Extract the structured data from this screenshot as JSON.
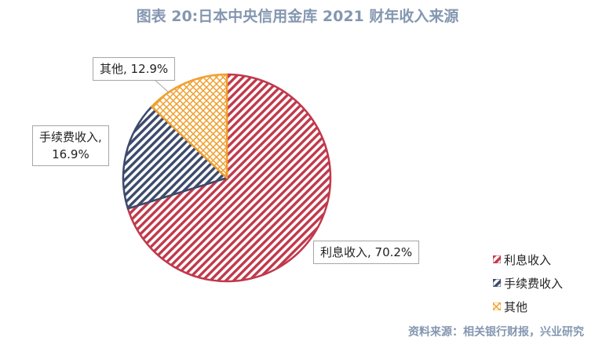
{
  "chart_data": {
    "type": "pie",
    "title": "图表 20:日本中央信用金库 2021 财年收入来源",
    "slices": [
      {
        "name": "利息收入",
        "value": 70.2,
        "label": "利息收入, 70.2%",
        "color": "#c0394b",
        "pattern": "diagonal-stripes"
      },
      {
        "name": "手续费收入",
        "value": 16.9,
        "label_line1": "手续费收入,",
        "label_line2": "16.9%",
        "color": "#3c4a6b",
        "pattern": "diagonal-stripes"
      },
      {
        "name": "其他",
        "value": 12.9,
        "label": "其他, 12.9%",
        "color": "#f0a030",
        "pattern": "crosshatch"
      }
    ],
    "legend_position": "bottom-right"
  },
  "legend": {
    "items": [
      "利息收入",
      "手续费收入",
      "其他"
    ]
  },
  "source": "资料来源：相关银行财报，兴业研究"
}
